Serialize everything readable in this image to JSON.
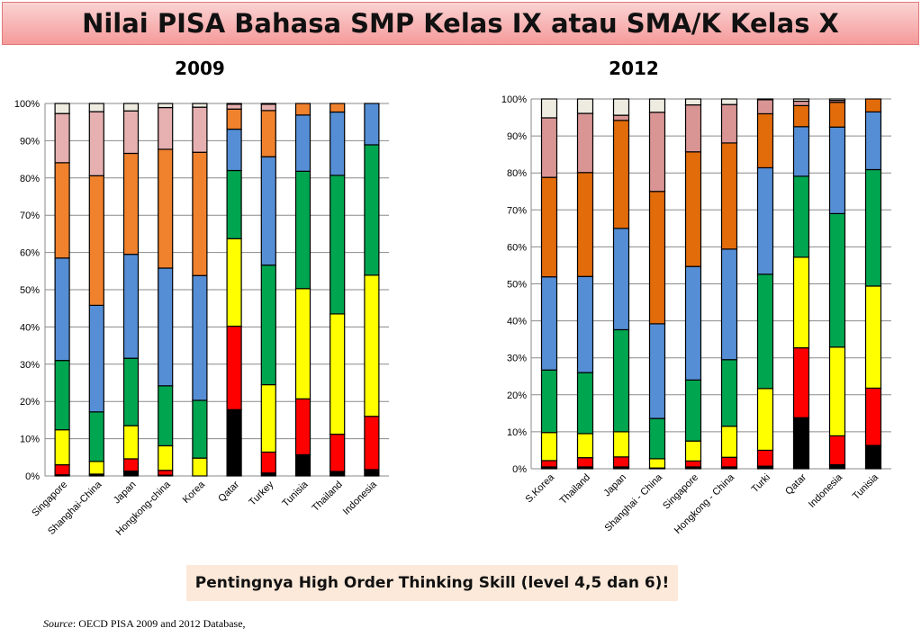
{
  "title": "Nilai PISA Bahasa SMP Kelas IX atau SMA/K Kelas X",
  "callout": "Pentingnya High Order Thinking Skill (level 4,5 dan 6)!",
  "source": {
    "label": "Source",
    "text": ": OECD PISA 2009  and 2012 Database,"
  },
  "chart_data": [
    {
      "type": "bar",
      "stacked": true,
      "title": "2009",
      "ylim": [
        0,
        100
      ],
      "yticks": [
        "0%",
        "10%",
        "20%",
        "30%",
        "40%",
        "50%",
        "60%",
        "70%",
        "80%",
        "90%",
        "100%"
      ],
      "grid": true,
      "categories": [
        "Singapore",
        "Shanghai-China",
        "Japan",
        "Hongkong-china",
        "Korea",
        "Qatar",
        "Turkey",
        "Tunisia",
        "Thailand",
        "Indonesia"
      ],
      "series": [
        {
          "color": "#000000",
          "values": [
            0.3,
            0.5,
            1.3,
            0.2,
            0.0,
            17.8,
            0.8,
            5.7,
            1.2,
            1.7
          ]
        },
        {
          "color": "#ff0000",
          "values": [
            2.7,
            0.0,
            3.3,
            1.3,
            0.0,
            22.4,
            5.6,
            15.0,
            10.0,
            14.3
          ]
        },
        {
          "color": "#ffff00",
          "values": [
            9.4,
            3.4,
            8.9,
            6.6,
            4.8,
            23.5,
            18.1,
            29.6,
            32.3,
            37.9
          ]
        },
        {
          "color": "#00a550",
          "values": [
            18.6,
            13.3,
            18.1,
            16.1,
            15.5,
            18.3,
            32.1,
            31.5,
            37.2,
            35.0
          ]
        },
        {
          "color": "#558ed5",
          "values": [
            27.5,
            28.6,
            27.9,
            31.6,
            33.5,
            11.1,
            29.1,
            15.1,
            17.0,
            11.1
          ]
        },
        {
          "color": "#f0812d",
          "values": [
            25.6,
            34.8,
            27.1,
            31.9,
            33.1,
            5.4,
            12.4,
            3.1,
            2.3,
            0.0
          ]
        },
        {
          "color": "#e6b0b0",
          "values": [
            13.2,
            17.2,
            11.4,
            11.2,
            12.1,
            1.3,
            1.7,
            0.0,
            0.0,
            0.0
          ]
        },
        {
          "color": "#eeece1",
          "values": [
            2.7,
            2.2,
            2.0,
            1.1,
            1.0,
            0.2,
            0.2,
            0.0,
            0.0,
            0.0
          ]
        }
      ]
    },
    {
      "type": "bar",
      "stacked": true,
      "title": "2012",
      "ylim": [
        0,
        100
      ],
      "yticks": [
        "0%",
        "10%",
        "20%",
        "30%",
        "40%",
        "50%",
        "60%",
        "70%",
        "80%",
        "90%",
        "100%"
      ],
      "grid": true,
      "categories": [
        "S.Korea",
        "Thailand",
        "Japan",
        "Shanghai - China",
        "Singapore",
        "Hongkong - China",
        "Turki",
        "Qatar",
        "Indonesia",
        "Tunisia"
      ],
      "series": [
        {
          "color": "#000000",
          "values": [
            0.5,
            0.5,
            0.5,
            0.0,
            0.5,
            0.5,
            0.7,
            13.8,
            1.1,
            6.3
          ]
        },
        {
          "color": "#ff0000",
          "values": [
            1.7,
            2.5,
            2.7,
            0.2,
            1.6,
            2.6,
            4.3,
            18.9,
            7.8,
            15.5
          ]
        },
        {
          "color": "#ffff00",
          "values": [
            7.6,
            6.5,
            6.8,
            2.5,
            5.4,
            8.4,
            16.7,
            24.5,
            24.0,
            27.6
          ]
        },
        {
          "color": "#00a550",
          "values": [
            16.9,
            16.5,
            27.6,
            10.9,
            16.5,
            18.0,
            30.9,
            21.9,
            36.1,
            31.5
          ]
        },
        {
          "color": "#558ed5",
          "values": [
            25.2,
            26.0,
            27.4,
            25.6,
            30.7,
            29.9,
            28.8,
            13.4,
            23.4,
            15.6
          ]
        },
        {
          "color": "#e26b0a",
          "values": [
            26.9,
            28.1,
            29.2,
            35.8,
            31.0,
            28.7,
            14.6,
            5.7,
            6.7,
            3.5
          ]
        },
        {
          "color": "#d99594",
          "values": [
            16.1,
            16.0,
            1.4,
            21.4,
            12.7,
            10.4,
            3.8,
            1.2,
            0.5,
            0.0
          ]
        },
        {
          "color": "#eeece1",
          "values": [
            5.1,
            3.9,
            4.4,
            3.6,
            1.6,
            1.5,
            0.2,
            0.6,
            0.4,
            0.0
          ]
        }
      ]
    }
  ]
}
